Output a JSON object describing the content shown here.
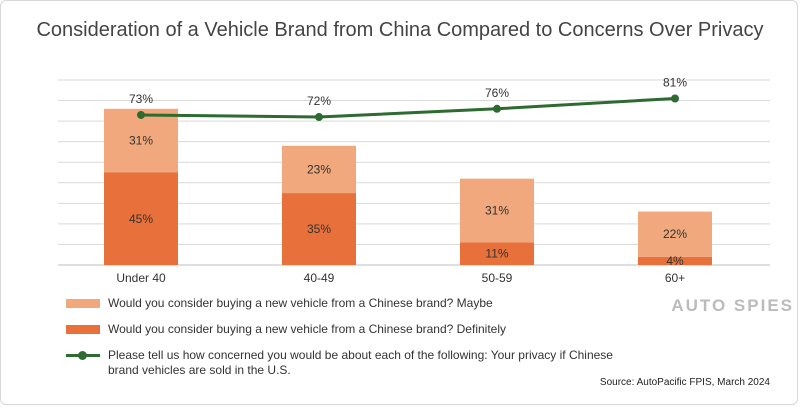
{
  "title": "Consideration of a Vehicle Brand from China Compared to Concerns Over Privacy",
  "colors": {
    "maybe": "#f0a87c",
    "definitely": "#e8703a",
    "line": "#2e6b30",
    "grid": "#d9d9d9"
  },
  "chart_data": {
    "type": "bar",
    "stacked": true,
    "categories": [
      "Under 40",
      "40-49",
      "50-59",
      "60+"
    ],
    "series": [
      {
        "name": "Would you consider buying a new vehicle from a Chinese brand? Definitely",
        "type": "bar",
        "values": [
          45,
          35,
          11,
          4
        ],
        "labels": [
          "45%",
          "35%",
          "11%",
          "4%"
        ]
      },
      {
        "name": "Would you consider buying a new vehicle from a Chinese brand? Maybe",
        "type": "bar",
        "values": [
          31,
          23,
          31,
          22
        ],
        "labels": [
          "31%",
          "23%",
          "31%",
          "22%"
        ]
      },
      {
        "name": "Please tell us how concerned you would be about each of the following: Your privacy if Chinese brand vehicles are sold in the U.S.",
        "type": "line",
        "values": [
          73,
          72,
          76,
          81
        ],
        "labels": [
          "73%",
          "72%",
          "76%",
          "81%"
        ]
      }
    ],
    "ylim": [
      0,
      90
    ],
    "grid": true,
    "legend_position": "bottom"
  },
  "legend": {
    "maybe": "Would you consider buying a new vehicle from a Chinese brand? Maybe",
    "definitely": "Would you consider buying a new vehicle from a Chinese brand? Definitely",
    "line": "Please tell us how concerned you would be about each of the following: Your privacy if Chinese brand vehicles are sold in the U.S."
  },
  "source": "Source: AutoPacific FPIS, March 2024",
  "watermark": "AUTO SPIES"
}
